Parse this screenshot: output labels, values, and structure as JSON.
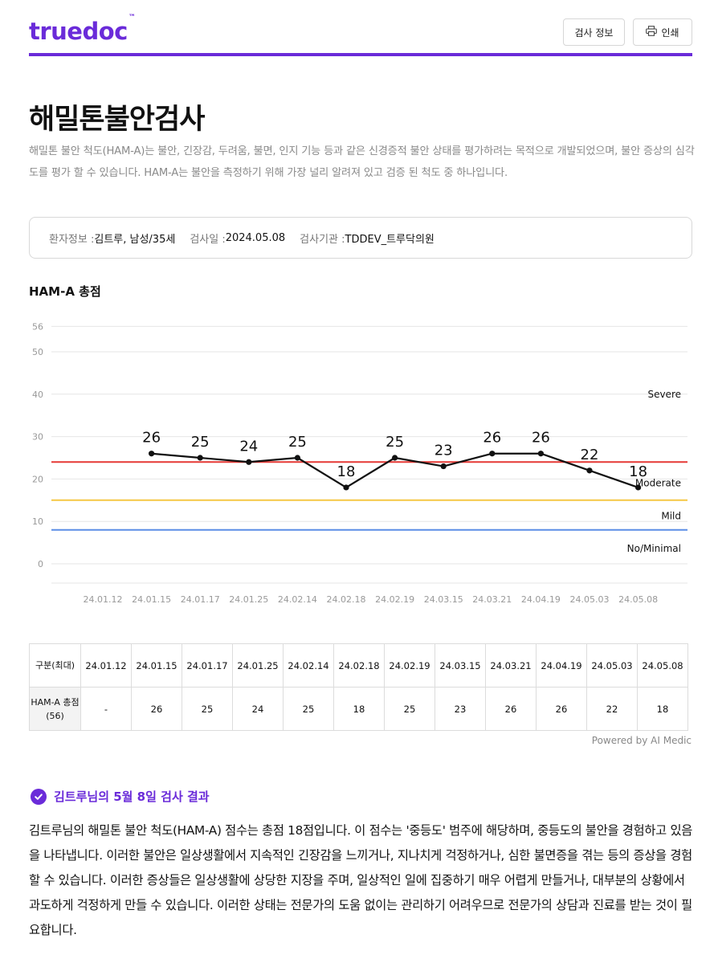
{
  "header": {
    "logo": "truedoc",
    "logo_tm": "™",
    "info_button": "검사 정보",
    "print_button": "인쇄"
  },
  "page": {
    "title": "해밀톤불안검사",
    "description": "해밀톤 불안 척도(HAM-A)는 불안, 긴장감, 두려움, 불면, 인지 기능 등과 같은 신경증적 불안 상태를 평가하려는 목적으로 개발되었으며, 불안 증상의 심각도를 평가 할 수 있습니다. HAM-A는 불안을 측정하기 위해 가장 널리 알려져 있고 검증 된 척도 중 하나입니다."
  },
  "patient": {
    "label_info": "환자정보 : ",
    "value_info": "김트루, 남성/35세",
    "label_date": "검사일 : ",
    "value_date": "2024.05.08",
    "label_org": "검사기관 : ",
    "value_org": "TDDEV_트루닥의원"
  },
  "chart_title": "HAM-A 총점",
  "chart_data": {
    "type": "line",
    "x": [
      "24.01.12",
      "24.01.15",
      "24.01.17",
      "24.01.25",
      "24.02.14",
      "24.02.18",
      "24.02.19",
      "24.03.15",
      "24.03.21",
      "24.04.19",
      "24.05.03",
      "24.05.08"
    ],
    "values": [
      null,
      26,
      25,
      24,
      25,
      18,
      25,
      23,
      26,
      26,
      22,
      18
    ],
    "yticks": [
      0,
      10,
      20,
      30,
      40,
      50,
      56
    ],
    "ylim": [
      0,
      56
    ],
    "thresholds": [
      {
        "value": 24,
        "color": "#e53935"
      },
      {
        "value": 15,
        "color": "#f6c744"
      },
      {
        "value": 8,
        "color": "#5b8ee6"
      }
    ],
    "zones": [
      {
        "label": "Severe",
        "y": 40
      },
      {
        "label": "Moderate",
        "y": 19
      },
      {
        "label": "Mild",
        "y": 11.3
      },
      {
        "label": "No/Minimal",
        "y": 3.6
      }
    ],
    "line_color": "#111111",
    "grid": true
  },
  "table": {
    "header_label": "구분(최대)",
    "row_label": "HAM-A 총점 (56)",
    "dates": [
      "24.01.12",
      "24.01.15",
      "24.01.17",
      "24.01.25",
      "24.02.14",
      "24.02.18",
      "24.02.19",
      "24.03.15",
      "24.03.21",
      "24.04.19",
      "24.05.03",
      "24.05.08"
    ],
    "values": [
      "-",
      "26",
      "25",
      "24",
      "25",
      "18",
      "25",
      "23",
      "26",
      "26",
      "22",
      "18"
    ]
  },
  "powered_by": "Powered by AI Medic",
  "result": {
    "heading": "김트루님의 5월 8일 검사 결과",
    "text": "김트루님의 해밀톤 불안 척도(HAM-A) 점수는 총점 18점입니다. 이 점수는 '중등도' 범주에 해당하며, 중등도의 불안을 경험하고 있음을 나타냅니다. 이러한 불안은 일상생활에서 지속적인 긴장감을 느끼거나, 지나치게 걱정하거나, 심한 불면증을 겪는 등의 증상을 경험할 수 있습니다. 이러한 증상들은 일상생활에 상당한 지장을 주며, 일상적인 일에 집중하기 매우 어렵게 만들거나, 대부분의 상황에서 과도하게 걱정하게 만들 수 있습니다. 이러한 상태는 전문가의 도움 없이는 관리하기 어려우므로 전문가의 상담과 진료를 받는 것이 필요합니다."
  },
  "colors": {
    "brand": "#6a2bd9"
  }
}
